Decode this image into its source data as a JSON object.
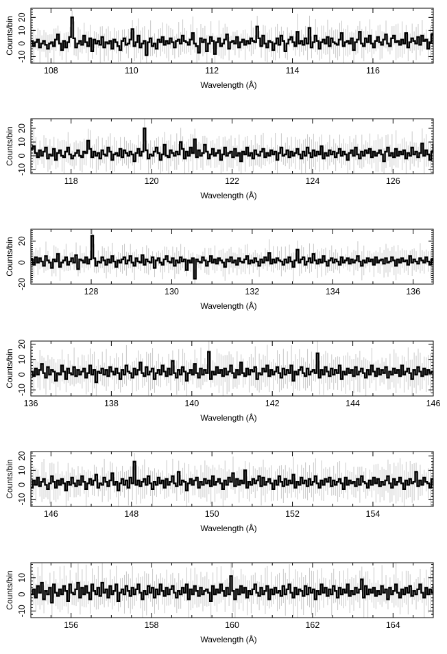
{
  "figure": {
    "xlabel": "Wavelength (Å)",
    "ylabel": "Counts/bin",
    "colors": {
      "histogram": "#000000",
      "error_bars": "#c8c8c8",
      "frame": "#000000"
    }
  },
  "chart_data": [
    {
      "type": "histogram",
      "xlabel": "Wavelength (Å)",
      "ylabel": "Counts/bin",
      "xlim": [
        107.5,
        117.5
      ],
      "ylim": [
        -15,
        27
      ],
      "xticks": [
        108,
        110,
        112,
        114,
        116
      ],
      "yticks": [
        -10,
        0,
        10,
        20
      ],
      "xtick_labels": [
        "108",
        "110",
        "112",
        "114",
        "116"
      ],
      "ytick_labels": [
        "-10",
        "0",
        "10",
        "20"
      ],
      "bin_width": 0.05,
      "x_start": 107.5,
      "values": [
        2,
        -2,
        1,
        3,
        -3,
        0,
        2,
        -1,
        -4,
        0,
        1,
        -2,
        3,
        7,
        0,
        -5,
        2,
        -3,
        1,
        5,
        20,
        4,
        -3,
        0,
        2,
        -1,
        6,
        1,
        -2,
        4,
        -6,
        3,
        0,
        2,
        -1,
        5,
        -3,
        1,
        0,
        2,
        -4,
        3,
        1,
        -2,
        -5,
        2,
        4,
        -1,
        0,
        3,
        11,
        -2,
        1,
        6,
        -3,
        0,
        2,
        -9,
        1,
        4,
        -2,
        0,
        -4,
        3,
        1,
        5,
        -1,
        2,
        0,
        4,
        1,
        -3,
        2,
        3,
        0,
        6,
        2,
        1,
        -1,
        3,
        8,
        0,
        -2,
        -7,
        4,
        1,
        3,
        -6,
        0,
        5,
        2,
        -8,
        1,
        4,
        -2,
        0,
        3,
        7,
        -4,
        1,
        2,
        0,
        5,
        -3,
        1,
        3,
        -1,
        2,
        0,
        4,
        2,
        1,
        13,
        4,
        -2,
        6,
        0,
        -3,
        2,
        1,
        -5,
        0,
        4,
        -1,
        6,
        2,
        -6,
        0,
        3,
        5,
        1,
        -2,
        9,
        0,
        2,
        -1,
        4,
        0,
        12,
        -3,
        1,
        6,
        2,
        -4,
        1,
        3,
        0,
        5,
        -2,
        4,
        1,
        0,
        -1,
        3,
        8,
        -2,
        1,
        2,
        0,
        4,
        -5,
        1,
        3,
        9,
        0,
        -2,
        4,
        1,
        6,
        0,
        -3,
        2,
        5,
        1,
        -1,
        3,
        7,
        0,
        -2,
        4,
        6,
        1,
        2,
        -1,
        3,
        0,
        8,
        -3,
        1,
        4,
        2,
        0,
        5,
        -1,
        6,
        2,
        3,
        -4,
        1,
        7,
        0,
        2,
        5,
        -2,
        3,
        1,
        6,
        0,
        14,
        -2,
        4,
        1,
        3,
        0,
        9,
        -3,
        2,
        5,
        1,
        -1,
        3,
        0
      ]
    },
    {
      "type": "histogram",
      "xlabel": "Wavelength (Å)",
      "ylabel": "Counts/bin",
      "xlim": [
        117,
        127
      ],
      "ylim": [
        -13,
        27
      ],
      "xticks": [
        118,
        120,
        122,
        124,
        126
      ],
      "yticks": [
        -10,
        0,
        10,
        20
      ],
      "xtick_labels": [
        "118",
        "120",
        "122",
        "124",
        "126"
      ],
      "ytick_labels": [
        "-10",
        "0",
        "10",
        "20"
      ],
      "bin_width": 0.05,
      "x_start": 117.0,
      "values": [
        5,
        7,
        2,
        -1,
        4,
        0,
        3,
        6,
        -2,
        1,
        0,
        5,
        -3,
        2,
        4,
        0,
        -1,
        3,
        6,
        1,
        -2,
        0,
        2,
        4,
        0,
        -1,
        3,
        2,
        11,
        5,
        -1,
        3,
        0,
        2,
        -2,
        4,
        1,
        0,
        6,
        3,
        -3,
        1,
        2,
        0,
        5,
        -1,
        4,
        2,
        0,
        3,
        1,
        -4,
        2,
        5,
        0,
        3,
        20,
        4,
        -2,
        1,
        0,
        3,
        6,
        2,
        -3,
        1,
        8,
        0,
        -1,
        4,
        2,
        0,
        3,
        1,
        10,
        5,
        -2,
        3,
        0,
        6,
        2,
        12,
        -1,
        4,
        0,
        2,
        8,
        3,
        -2,
        1,
        5,
        0,
        2,
        4,
        -3,
        1,
        6,
        0,
        2,
        3,
        -1,
        5,
        0,
        2,
        -4,
        3,
        1,
        6,
        0,
        2,
        -2,
        4,
        1,
        0,
        3,
        5,
        -1,
        2,
        0,
        4,
        1,
        3,
        -3,
        2,
        6,
        0,
        1,
        4,
        -1,
        3,
        0,
        2,
        5,
        1,
        -2,
        3,
        0,
        6,
        2,
        -1,
        4,
        0,
        3,
        1,
        7,
        -2,
        2,
        0,
        4,
        1,
        3,
        -1,
        2,
        5,
        0,
        3,
        1,
        -3,
        2,
        4,
        0,
        6,
        1,
        -2,
        3,
        0,
        4,
        2,
        5,
        -1,
        3,
        0,
        2,
        4,
        1,
        -4,
        3,
        6,
        0,
        2,
        -1,
        5,
        0,
        3,
        1,
        4,
        -2,
        2,
        0,
        6,
        1,
        3,
        -1,
        2,
        9,
        0,
        4,
        1,
        -3,
        3,
        8,
        0,
        2,
        5,
        -1,
        3,
        0,
        4,
        2,
        1
      ]
    },
    {
      "type": "histogram",
      "xlabel": "Wavelength (Å)",
      "ylabel": "Counts/bin",
      "xlim": [
        126.5,
        136.5
      ],
      "ylim": [
        -20,
        31
      ],
      "xticks": [
        128,
        130,
        132,
        134,
        136
      ],
      "yticks": [
        -20,
        0,
        20
      ],
      "xtick_labels": [
        "128",
        "130",
        "132",
        "134",
        "136"
      ],
      "ytick_labels": [
        "-20",
        "0",
        "20"
      ],
      "bin_width": 0.05,
      "x_start": 126.5,
      "values": [
        3,
        -2,
        5,
        0,
        4,
        1,
        -3,
        6,
        2,
        0,
        -5,
        3,
        1,
        8,
        -4,
        0,
        2,
        5,
        -2,
        1,
        4,
        0,
        7,
        -6,
        3,
        2,
        0,
        5,
        -1,
        3,
        25,
        4,
        -3,
        1,
        0,
        5,
        2,
        -2,
        3,
        0,
        6,
        1,
        -4,
        2,
        0,
        3,
        5,
        -1,
        2,
        6,
        0,
        -3,
        4,
        1,
        0,
        7,
        -2,
        3,
        1,
        0,
        5,
        -5,
        2,
        4,
        0,
        -2,
        3,
        6,
        1,
        0,
        4,
        -3,
        2,
        0,
        5,
        1,
        3,
        -7,
        2,
        0,
        4,
        -15,
        3,
        1,
        0,
        5,
        2,
        -3,
        1,
        6,
        0,
        3,
        -1,
        4,
        2,
        0,
        -4,
        3,
        1,
        5,
        0,
        2,
        -2,
        4,
        1,
        0,
        3,
        6,
        -1,
        2,
        0,
        4,
        1,
        -3,
        3,
        0,
        5,
        2,
        9,
        -1,
        3,
        0,
        4,
        2,
        1,
        -2,
        3,
        0,
        5,
        1,
        -4,
        2,
        12,
        0,
        3,
        5,
        -2,
        1,
        4,
        0,
        8,
        2,
        -1,
        3,
        0,
        6,
        1,
        -3,
        2,
        4,
        0,
        3,
        1,
        -2,
        5,
        0,
        2,
        4,
        -1,
        3,
        0,
        2,
        6,
        1,
        -3,
        2,
        0,
        4,
        1,
        3,
        -2,
        5,
        0,
        2,
        3,
        -1,
        4,
        0,
        1,
        5,
        2,
        -3,
        3,
        0,
        4,
        1,
        2,
        -2,
        6,
        0,
        3,
        1,
        -1,
        4,
        2,
        0,
        5,
        1,
        -2,
        3,
        0,
        4,
        2,
        1,
        -3,
        3
      ]
    },
    {
      "type": "histogram",
      "xlabel": "Wavelength (Å)",
      "ylabel": "Counts/bin",
      "xlim": [
        136,
        146
      ],
      "ylim": [
        -14,
        22
      ],
      "xticks": [
        136,
        138,
        140,
        142,
        144,
        146
      ],
      "yticks": [
        -10,
        0,
        10,
        20
      ],
      "xtick_labels": [
        "136",
        "138",
        "140",
        "142",
        "144",
        "146"
      ],
      "ytick_labels": [
        "-10",
        "0",
        "10",
        "20"
      ],
      "bin_width": 0.05,
      "x_start": 136.0,
      "values": [
        2,
        -1,
        4,
        0,
        3,
        7,
        1,
        -2,
        5,
        0,
        3,
        2,
        -4,
        1,
        0,
        6,
        2,
        -3,
        4,
        1,
        0,
        5,
        -1,
        3,
        0,
        2,
        4,
        -2,
        1,
        6,
        0,
        3,
        -5,
        2,
        1,
        4,
        0,
        3,
        -1,
        5,
        2,
        0,
        4,
        1,
        -3,
        3,
        0,
        6,
        2,
        1,
        -2,
        4,
        0,
        3,
        8,
        1,
        -1,
        5,
        0,
        2,
        4,
        -3,
        1,
        3,
        0,
        6,
        2,
        -1,
        4,
        0,
        9,
        1,
        -2,
        3,
        0,
        5,
        2,
        -4,
        1,
        3,
        0,
        7,
        1,
        -2,
        4,
        0,
        3,
        1,
        15,
        -3,
        2,
        0,
        5,
        1,
        3,
        -1,
        4,
        0,
        2,
        6,
        1,
        -2,
        3,
        0,
        8,
        1,
        -1,
        4,
        0,
        3,
        2,
        5,
        -3,
        1,
        0,
        4,
        2,
        6,
        -1,
        3,
        0,
        2,
        5,
        1,
        -2,
        4,
        0,
        3,
        1,
        6,
        -4,
        2,
        0,
        3,
        5,
        1,
        -1,
        4,
        0,
        2,
        3,
        1,
        14,
        -2,
        3,
        0,
        5,
        2,
        -1,
        4,
        0,
        3,
        1,
        6,
        -3,
        2,
        0,
        4,
        1,
        3,
        -1,
        5,
        0,
        2,
        4,
        1,
        -2,
        3,
        0,
        6,
        2,
        -1,
        4,
        0,
        3,
        1,
        5,
        -2,
        2,
        0,
        4,
        1,
        3,
        -1,
        6,
        0,
        2,
        4,
        1,
        -3,
        3,
        0,
        5,
        2,
        -1,
        4,
        0,
        3,
        1,
        2,
        -2,
        4,
        0,
        3,
        1,
        2
      ]
    },
    {
      "type": "histogram",
      "xlabel": "Wavelength (Å)",
      "ylabel": "Counts/bin",
      "xlim": [
        145.5,
        155.5
      ],
      "ylim": [
        -15,
        23
      ],
      "xticks": [
        146,
        148,
        150,
        152,
        154
      ],
      "yticks": [
        -10,
        0,
        10,
        20
      ],
      "xtick_labels": [
        "146",
        "148",
        "150",
        "152",
        "154"
      ],
      "ytick_labels": [
        "-10",
        "0",
        "10",
        "20"
      ],
      "bin_width": 0.05,
      "x_start": 145.5,
      "values": [
        -2,
        3,
        0,
        5,
        -1,
        2,
        4,
        0,
        -3,
        1,
        6,
        2,
        -2,
        3,
        0,
        4,
        1,
        -4,
        2,
        0,
        5,
        1,
        -1,
        3,
        0,
        6,
        2,
        -3,
        1,
        4,
        0,
        3,
        7,
        -2,
        1,
        0,
        5,
        2,
        -1,
        3,
        8,
        0,
        2,
        -4,
        1,
        4,
        0,
        3,
        -2,
        5,
        1,
        16,
        0,
        3,
        -1,
        2,
        4,
        0,
        6,
        1,
        -3,
        2,
        0,
        5,
        1,
        3,
        -2,
        4,
        0,
        2,
        6,
        1,
        -1,
        9,
        0,
        3,
        2,
        -4,
        1,
        4,
        0,
        3,
        5,
        -2,
        2,
        0,
        4,
        1,
        3,
        -1,
        6,
        0,
        2,
        4,
        1,
        -3,
        3,
        0,
        5,
        2,
        8,
        -1,
        4,
        0,
        3,
        1,
        10,
        -2,
        2,
        0,
        4,
        1,
        3,
        6,
        -1,
        5,
        0,
        2,
        4,
        1,
        -3,
        3,
        0,
        6,
        2,
        -1,
        4,
        0,
        3,
        1,
        7,
        -2,
        2,
        0,
        5,
        1,
        3,
        -1,
        4,
        0,
        2,
        6,
        1,
        -2,
        3,
        0,
        4,
        2,
        5,
        -1,
        3,
        0,
        2,
        4,
        1,
        -3,
        5,
        0,
        3,
        1,
        2,
        -1,
        4,
        0,
        6,
        2,
        1,
        -2,
        3,
        0,
        5,
        1,
        4,
        -1,
        2,
        0,
        3,
        6,
        1,
        -2,
        4,
        0,
        2,
        5,
        1,
        -3,
        3,
        0,
        4,
        1,
        2,
        9,
        -1,
        3,
        0,
        5,
        2,
        1,
        -2,
        4,
        0,
        3,
        1,
        6,
        -1,
        2,
        0,
        4,
        1,
        3
      ]
    },
    {
      "type": "histogram",
      "xlabel": "Wavelength (Å)",
      "ylabel": "Counts/bin",
      "xlim": [
        155,
        165
      ],
      "ylim": [
        -14,
        19
      ],
      "xticks": [
        156,
        158,
        160,
        162,
        164
      ],
      "yticks": [
        -10,
        0,
        10
      ],
      "xtick_labels": [
        "156",
        "158",
        "160",
        "162",
        "164"
      ],
      "ytick_labels": [
        "-10",
        "0",
        "10"
      ],
      "bin_width": 0.05,
      "x_start": 155.0,
      "values": [
        0,
        3,
        -2,
        5,
        1,
        7,
        -3,
        2,
        0,
        4,
        -5,
        6,
        1,
        -1,
        3,
        0,
        5,
        2,
        -4,
        6,
        1,
        0,
        3,
        7,
        -2,
        4,
        0,
        5,
        1,
        -3,
        6,
        2,
        0,
        4,
        -1,
        7,
        1,
        3,
        -2,
        5,
        0,
        2,
        6,
        -4,
        1,
        3,
        0,
        5,
        2,
        -1,
        4,
        0,
        3,
        6,
        1,
        -3,
        2,
        0,
        5,
        1,
        4,
        -2,
        3,
        0,
        6,
        2,
        -1,
        4,
        0,
        3,
        5,
        1,
        -2,
        2,
        0,
        4,
        1,
        6,
        -3,
        3,
        0,
        5,
        2,
        -1,
        4,
        0,
        2,
        3,
        1,
        -4,
        5,
        0,
        3,
        1,
        6,
        2,
        -1,
        4,
        0,
        11,
        2,
        -3,
        3,
        0,
        5,
        1,
        4,
        -2,
        2,
        0,
        3,
        6,
        1,
        -1,
        4,
        0,
        2,
        5,
        -3,
        3,
        0,
        4,
        1,
        2,
        -1,
        5,
        0,
        3,
        6,
        1,
        -2,
        4,
        0,
        3,
        2,
        -1,
        5,
        0,
        4,
        1,
        3,
        -3,
        2,
        0,
        6,
        1,
        4,
        -1,
        3,
        0,
        5,
        2,
        -2,
        4,
        0,
        3,
        1,
        6,
        -1,
        2,
        0,
        4,
        1,
        3,
        9,
        -2,
        5,
        0,
        3,
        1,
        4,
        -1,
        2,
        0,
        5,
        1,
        3,
        -3,
        4,
        0,
        2,
        6,
        1,
        -2,
        3,
        0,
        4,
        1,
        5,
        -1,
        2,
        0,
        3,
        6,
        1,
        -2,
        4,
        0,
        3,
        1,
        5,
        -1,
        2,
        0,
        4,
        1,
        3,
        -2
      ]
    }
  ]
}
